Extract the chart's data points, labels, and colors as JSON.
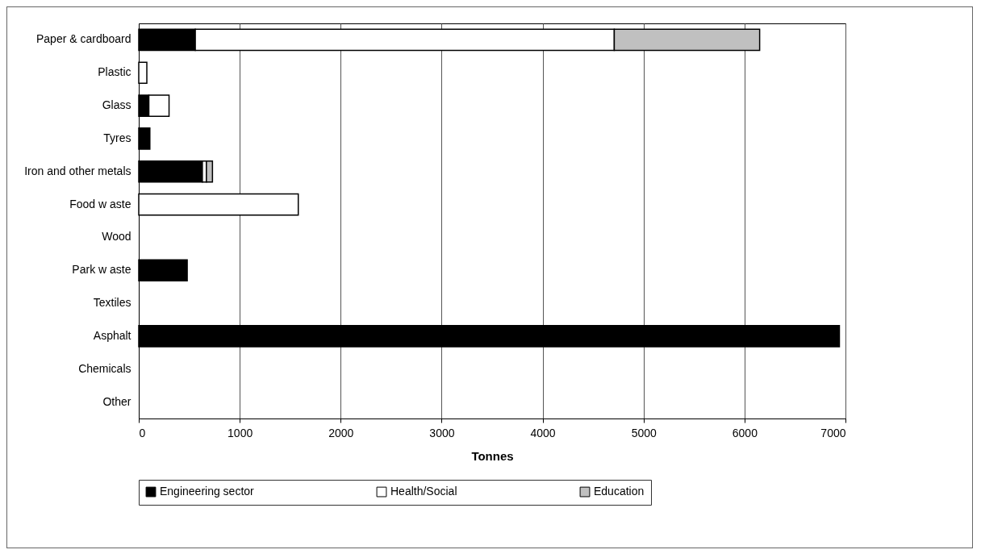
{
  "chart_data": {
    "type": "bar",
    "orientation": "horizontal",
    "stacked": true,
    "xlabel": "Tonnes",
    "categories": [
      "Paper & cardboard",
      "Plastic",
      "Glass",
      "Tyres",
      "Iron and other metals",
      "Food w aste",
      "Wood",
      "Park w aste",
      "Textiles",
      "Asphalt",
      "Chemicals",
      "Other"
    ],
    "series": [
      {
        "name": "Engineering sector",
        "color": "#000000",
        "values": [
          560,
          null,
          100,
          110,
          630,
          null,
          null,
          480,
          null,
          6940,
          null,
          null
        ]
      },
      {
        "name": "Health/Social",
        "color": "#ffffff",
        "values": [
          4150,
          80,
          200,
          null,
          40,
          1580,
          null,
          null,
          null,
          null,
          null,
          null
        ]
      },
      {
        "name": "Education",
        "color": "#c0c0c0",
        "values": [
          1440,
          null,
          null,
          null,
          60,
          null,
          null,
          null,
          null,
          null,
          null,
          null
        ]
      }
    ],
    "xlim": [
      0,
      7000
    ],
    "xticks": [
      0,
      1000,
      2000,
      3000,
      4000,
      5000,
      6000,
      7000
    ],
    "grid": "x",
    "legend": "bottom"
  }
}
